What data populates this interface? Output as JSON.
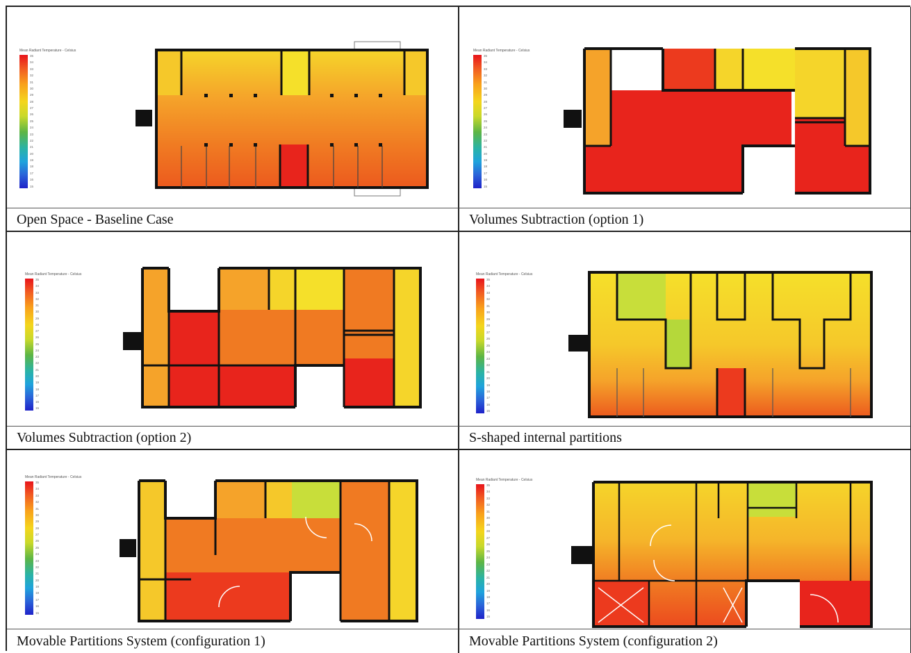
{
  "legend": {
    "title": "Mean Radiant Temperature - Celsius",
    "ticks": [
      "35",
      "34",
      "33",
      "32",
      "31",
      "30",
      "29",
      "28",
      "27",
      "26",
      "25",
      "24",
      "23",
      "22",
      "21",
      "20",
      "19",
      "18",
      "17",
      "16",
      "15"
    ]
  },
  "panels": [
    {
      "caption": "Open Space - Baseline Case"
    },
    {
      "caption": "Volumes Subtraction (option 1)"
    },
    {
      "caption": "Volumes Subtraction (option 2)"
    },
    {
      "caption": "S-shaped internal partitions"
    },
    {
      "caption": "Movable Partitions System (configuration 1)"
    },
    {
      "caption": "Movable Partitions System (configuration 2)"
    }
  ],
  "colors": {
    "hot_red": "#e8241c",
    "orange": "#f07a22",
    "light_orange": "#f5a32a",
    "yellow": "#f5da2a",
    "yellow_green": "#c8de3a",
    "wall": "#111111"
  }
}
